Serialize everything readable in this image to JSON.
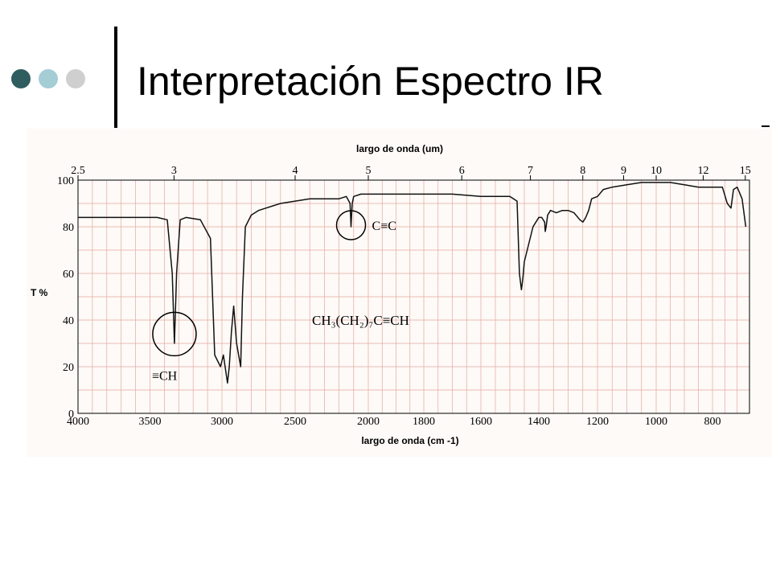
{
  "slide": {
    "title": "Interpretación Espectro IR",
    "dot_colors": [
      "#2f5d60",
      "#a4cdd6",
      "#cfcfcf"
    ],
    "accent": "#000000"
  },
  "chart_data": {
    "type": "line",
    "title": "",
    "top_axis_label": "largo de onda (um)",
    "xlabel": "largo de onda (cm -1)",
    "ylabel": "T %",
    "xlim": [
      4000,
      650
    ],
    "ylim": [
      0,
      100
    ],
    "grid": true,
    "bottom_ticks": [
      4000,
      3500,
      3000,
      2500,
      2000,
      1800,
      1600,
      1400,
      1200,
      1000,
      800
    ],
    "y_ticks": [
      0,
      20,
      40,
      60,
      80,
      100
    ],
    "top_ticks": [
      {
        "label": "2.5",
        "cm": 4000
      },
      {
        "label": "3",
        "cm": 3333
      },
      {
        "label": "4",
        "cm": 2500
      },
      {
        "label": "5",
        "cm": 2000
      },
      {
        "label": "6",
        "cm": 1667
      },
      {
        "label": "7",
        "cm": 1429
      },
      {
        "label": "8",
        "cm": 1250
      },
      {
        "label": "9",
        "cm": 1111
      },
      {
        "label": "10",
        "cm": 1000
      },
      {
        "label": "12",
        "cm": 833
      },
      {
        "label": "15",
        "cm": 667
      }
    ],
    "series": [
      {
        "x": [
          4000,
          3800,
          3600,
          3450,
          3380,
          3345,
          3330,
          3315,
          3290,
          3250,
          3150,
          3080,
          3050,
          3010,
          2990,
          2962,
          2950,
          2935,
          2920,
          2900,
          2872,
          2860,
          2840,
          2800,
          2750,
          2700,
          2650,
          2600,
          2500,
          2400,
          2300,
          2200,
          2150,
          2125,
          2118,
          2110,
          2100,
          2050,
          2000,
          1900,
          1800,
          1700,
          1600,
          1500,
          1475,
          1467,
          1460,
          1455,
          1450,
          1440,
          1430,
          1420,
          1410,
          1400,
          1390,
          1380,
          1378,
          1375,
          1370,
          1360,
          1340,
          1320,
          1300,
          1280,
          1260,
          1250,
          1240,
          1230,
          1220,
          1200,
          1180,
          1150,
          1100,
          1050,
          1000,
          950,
          900,
          850,
          800,
          760,
          740,
          725,
          715,
          700,
          680,
          665
        ],
        "y": [
          84,
          84,
          84,
          84,
          83,
          60,
          30,
          60,
          83,
          84,
          83,
          75,
          25,
          20,
          25,
          13,
          20,
          35,
          46,
          30,
          20,
          50,
          80,
          85,
          87,
          88,
          89,
          90,
          91,
          92,
          92,
          92,
          93,
          90,
          80,
          90,
          93,
          94,
          94,
          94,
          94,
          94,
          93,
          93,
          91,
          60,
          53,
          58,
          65,
          70,
          75,
          80,
          82,
          84,
          84,
          82,
          78,
          80,
          85,
          87,
          86,
          87,
          87,
          86,
          83,
          82,
          84,
          87,
          92,
          93,
          96,
          97,
          98,
          99,
          99,
          99,
          98,
          97,
          97,
          97,
          90,
          88,
          96,
          97,
          92,
          80
        ]
      }
    ],
    "annotations": [
      {
        "text": "C≡C",
        "cm": 2118,
        "y": 80
      },
      {
        "text": "≡CH",
        "cm": 3330,
        "y": 34
      },
      {
        "text": "CH₃(CH₂)₇C≡CH"
      }
    ]
  }
}
